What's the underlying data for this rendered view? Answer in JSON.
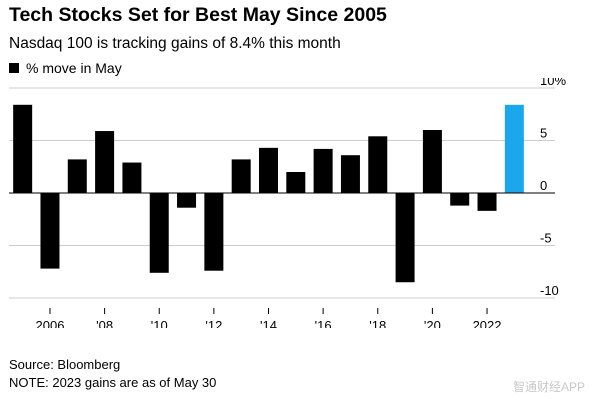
{
  "header": {
    "title": "Tech Stocks Set for Best May Since 2005",
    "subtitle": "Nasdaq 100 is tracking gains of 8.4% this month"
  },
  "legend": {
    "label": "% move in May",
    "swatch_color": "#000000"
  },
  "footer": {
    "source": "Source: Bloomberg",
    "note": "NOTE: 2023 gains are as of May 30"
  },
  "watermark": "智通财经APP",
  "colors": {
    "bar": "#000000",
    "highlight": "#1aa7ec",
    "axis": "#000000",
    "grid": "#cccccc"
  },
  "chart_data": {
    "type": "bar",
    "categories": [
      "2005",
      "2006",
      "2007",
      "2008",
      "2009",
      "2010",
      "2011",
      "2012",
      "2013",
      "2014",
      "2015",
      "2016",
      "2017",
      "2018",
      "2019",
      "2020",
      "2021",
      "2022",
      "2023"
    ],
    "values": [
      8.4,
      -7.2,
      3.2,
      5.9,
      2.9,
      -7.6,
      -1.4,
      -7.4,
      3.2,
      4.3,
      2.0,
      4.2,
      3.6,
      5.4,
      -8.5,
      6.0,
      -1.2,
      -1.7,
      8.4
    ],
    "highlight_index": 18,
    "x_tick_labels": [
      {
        "index": 1,
        "label": "2006"
      },
      {
        "index": 3,
        "label": "'08"
      },
      {
        "index": 5,
        "label": "'10"
      },
      {
        "index": 7,
        "label": "'12"
      },
      {
        "index": 9,
        "label": "'14"
      },
      {
        "index": 11,
        "label": "'16"
      },
      {
        "index": 13,
        "label": "'18"
      },
      {
        "index": 15,
        "label": "'20"
      },
      {
        "index": 17,
        "label": "2022"
      }
    ],
    "y_ticks": [
      {
        "value": 10,
        "label": "10%"
      },
      {
        "value": 5,
        "label": "5"
      },
      {
        "value": 0,
        "label": "0"
      },
      {
        "value": -5,
        "label": "-5"
      },
      {
        "value": -10,
        "label": "-10"
      }
    ],
    "ylim": [
      -10,
      10
    ],
    "grid": true,
    "legend_position": "top-left"
  }
}
